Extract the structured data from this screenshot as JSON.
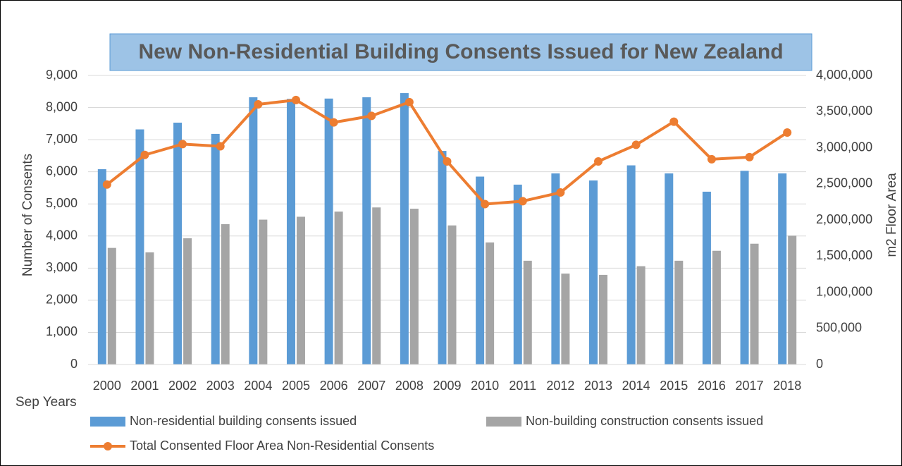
{
  "chart_data": {
    "type": "bar",
    "title": "New Non-Residential Building Consents Issued for New Zealand",
    "x_label": "Sep Years",
    "y_label": "Number  of Consents",
    "y2_label": "m2 Floor Area",
    "categories": [
      "2000",
      "2001",
      "2002",
      "2003",
      "2004",
      "2005",
      "2006",
      "2007",
      "2008",
      "2009",
      "2010",
      "2011",
      "2012",
      "2013",
      "2014",
      "2015",
      "2016",
      "2017",
      "2018"
    ],
    "series": [
      {
        "name": "Non-residential building consents issued",
        "type": "bar",
        "color": "#5b9bd5",
        "values": [
          6080,
          7320,
          7530,
          7180,
          8320,
          8270,
          8280,
          8320,
          8450,
          6650,
          5850,
          5600,
          5950,
          5730,
          6200,
          5950,
          5380,
          6030,
          5950
        ]
      },
      {
        "name": "Non-building construction consents issued",
        "type": "bar",
        "color": "#a5a5a5",
        "values": [
          3630,
          3490,
          3930,
          4370,
          4510,
          4600,
          4760,
          4890,
          4850,
          4330,
          3800,
          3230,
          2830,
          2790,
          3060,
          3230,
          3540,
          3760,
          4010
        ]
      },
      {
        "name": "Total Consented Floor Area Non-Residential Consents",
        "type": "line",
        "axis": "y2",
        "color": "#ed7d31",
        "values": [
          2490000,
          2900000,
          3050000,
          3020000,
          3600000,
          3660000,
          3350000,
          3440000,
          3630000,
          2810000,
          2220000,
          2260000,
          2380000,
          2810000,
          3040000,
          3360000,
          2840000,
          2870000,
          3210000
        ]
      }
    ],
    "ylim": [
      0,
      9000
    ],
    "yticks": [
      0,
      {
        "value": 1000,
        "label": "1,000"
      },
      {
        "value": 2000,
        "label": "2,000"
      },
      {
        "value": 3000,
        "label": "3,000"
      },
      {
        "value": 4000,
        "label": "4,000"
      },
      {
        "value": 5000,
        "label": "5,000"
      },
      {
        "value": 6000,
        "label": "6,000"
      },
      {
        "value": 7000,
        "label": "7,000"
      },
      {
        "value": 8000,
        "label": "8,000"
      },
      {
        "value": 9000,
        "label": "9,000"
      }
    ],
    "y2lim": [
      0,
      4000000
    ],
    "y2ticks": [
      0,
      {
        "value": 500000,
        "label": "500,000"
      },
      {
        "value": 1000000,
        "label": "1,000,000"
      },
      {
        "value": 1500000,
        "label": "1,500,000"
      },
      {
        "value": 2000000,
        "label": "2,000,000"
      },
      {
        "value": 2500000,
        "label": "2,500,000"
      },
      {
        "value": 3000000,
        "label": "3,000,000"
      },
      {
        "value": 3500000,
        "label": "3,500,000"
      },
      {
        "value": 4000000,
        "label": "4,000,000"
      }
    ],
    "grid": true
  }
}
